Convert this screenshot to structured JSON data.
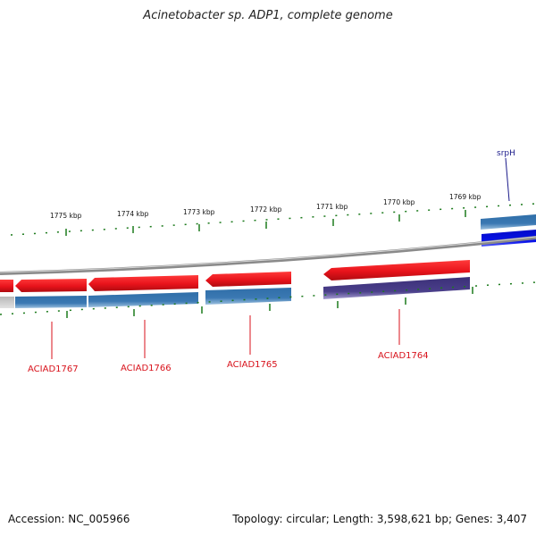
{
  "title": "Acinetobacter sp. ADP1, complete genome",
  "footer": {
    "accession": "Accession: NC_005966",
    "topology": "Topology: circular; Length: 3,598,621 bp; Genes: 3,407"
  },
  "colors": {
    "forward_gene": "#e8131b",
    "reverse_gene": "#3b79b3",
    "purple_gene": "#4a3f8a",
    "blue_gene": "#0a14e8",
    "backbone": "#8a8a8a",
    "tick": "#1c7a1c",
    "gene_label": "#d8121b",
    "srph_label": "#1a1a8a"
  },
  "scale": {
    "labels": [
      "1775 kbp",
      "1774 kbp",
      "1773 kbp",
      "1772 kbp",
      "1771 kbp",
      "1770 kbp",
      "1769 kbp"
    ]
  },
  "genes": [
    {
      "name": "ACIAD1767"
    },
    {
      "name": "ACIAD1766"
    },
    {
      "name": "ACIAD1765"
    },
    {
      "name": "ACIAD1764"
    },
    {
      "name": "srpH"
    }
  ]
}
